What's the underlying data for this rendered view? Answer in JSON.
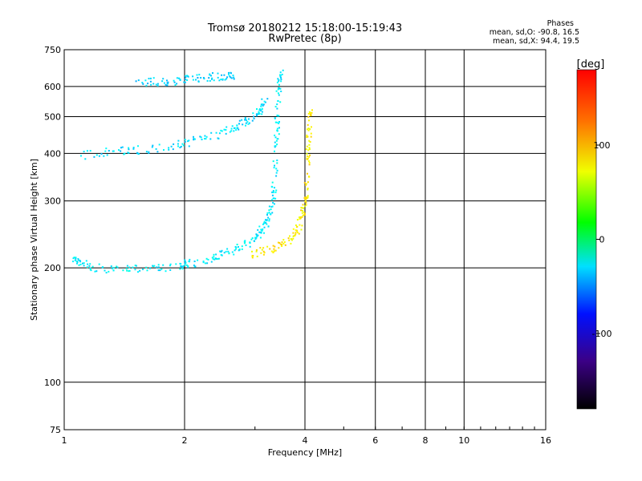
{
  "header": {
    "title_line1": "Tromsø 20180212 15:18:00-15:19:43",
    "title_line2": "RwPretec (8p)",
    "stats_title": "Phases",
    "stats_o": "mean, sd,O: -90.8, 16.5",
    "stats_x": "mean, sd,X:  94.4, 19.5"
  },
  "chart_data": {
    "type": "scatter",
    "title": "Tromsø 20180212 15:18:00-15:19:43",
    "subtitle": "RwPretec (8p)",
    "xlabel": "Frequency [MHz]",
    "ylabel": "Stationary phase Virtual Height [km]",
    "x_scale": "log",
    "y_scale": "log",
    "xlim": [
      1,
      16
    ],
    "ylim": [
      75,
      750
    ],
    "x_ticks": [
      1,
      2,
      4,
      6,
      8,
      10,
      16
    ],
    "y_ticks": [
      75,
      100,
      200,
      300,
      400,
      500,
      600,
      750
    ],
    "x_gridlines": [
      1,
      2,
      4,
      6,
      8,
      10,
      16
    ],
    "y_gridlines": [
      75,
      100,
      200,
      300,
      400,
      500,
      600,
      750
    ],
    "grid": true,
    "colorbar": {
      "label": "[deg]",
      "range": [
        -180,
        180
      ],
      "ticks": [
        100,
        0,
        -100
      ],
      "colormap": "rainbow"
    },
    "traces": [
      {
        "description": "O-mode E/F1 trace",
        "phase_deg": -95,
        "points": [
          [
            1.05,
            210
          ],
          [
            1.1,
            205
          ],
          [
            1.2,
            200
          ],
          [
            1.4,
            198
          ],
          [
            1.6,
            199
          ],
          [
            1.8,
            201
          ],
          [
            2.0,
            204
          ],
          [
            2.2,
            208
          ],
          [
            2.4,
            213
          ],
          [
            2.6,
            220
          ],
          [
            2.8,
            228
          ],
          [
            3.0,
            238
          ],
          [
            3.1,
            248
          ],
          [
            3.2,
            262
          ],
          [
            3.3,
            285
          ],
          [
            3.35,
            320
          ],
          [
            3.38,
            380
          ],
          [
            3.4,
            450
          ],
          [
            3.42,
            530
          ],
          [
            3.45,
            610
          ],
          [
            3.48,
            650
          ]
        ]
      },
      {
        "description": "O-mode upper branch",
        "phase_deg": -100,
        "points": [
          [
            1.1,
            395
          ],
          [
            1.3,
            405
          ],
          [
            1.5,
            408
          ],
          [
            1.8,
            415
          ],
          [
            2.0,
            425
          ],
          [
            2.3,
            440
          ],
          [
            2.6,
            460
          ],
          [
            2.8,
            480
          ],
          [
            3.0,
            500
          ],
          [
            3.1,
            520
          ],
          [
            3.2,
            560
          ]
        ]
      },
      {
        "description": "O-mode high echoes",
        "phase_deg": -105,
        "points": [
          [
            1.5,
            612
          ],
          [
            1.7,
            618
          ],
          [
            1.9,
            620
          ],
          [
            2.1,
            630
          ],
          [
            2.3,
            635
          ],
          [
            2.5,
            640
          ],
          [
            2.65,
            645
          ]
        ]
      },
      {
        "description": "X-mode trace",
        "phase_deg": 95,
        "points": [
          [
            2.9,
            215
          ],
          [
            3.2,
            222
          ],
          [
            3.5,
            230
          ],
          [
            3.7,
            240
          ],
          [
            3.85,
            255
          ],
          [
            3.95,
            275
          ],
          [
            4.0,
            300
          ],
          [
            4.05,
            340
          ],
          [
            4.08,
            400
          ],
          [
            4.1,
            460
          ],
          [
            4.12,
            520
          ]
        ]
      }
    ]
  }
}
